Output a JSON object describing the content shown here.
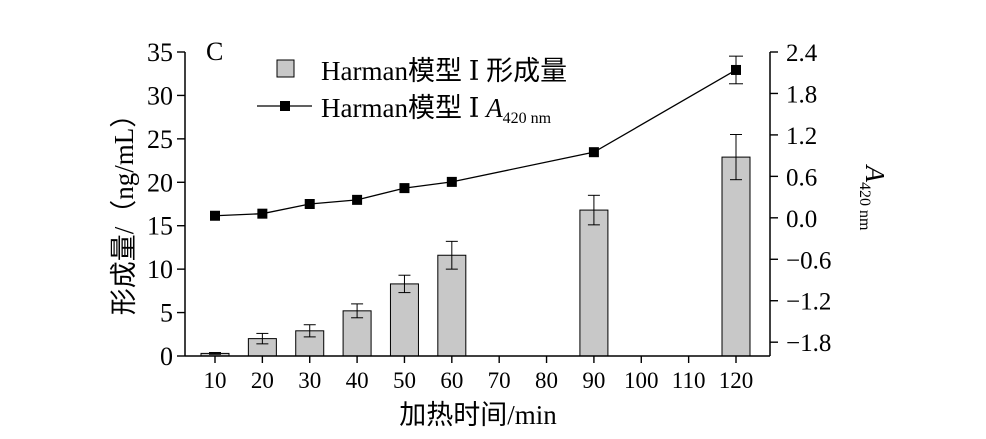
{
  "chart_data": {
    "type": "bar",
    "panel_label": "C",
    "xlabel": "加热时间/min",
    "ylabel": "形成量/（ng/mL）",
    "y2label": {
      "var": "A",
      "sub": "420 nm"
    },
    "categories": [
      "10",
      "20",
      "30",
      "40",
      "50",
      "60",
      "70",
      "80",
      "90",
      "100",
      "110",
      "120"
    ],
    "ylim": [
      0,
      35
    ],
    "yticks": [
      "0",
      "5",
      "10",
      "15",
      "20",
      "25",
      "30",
      "35"
    ],
    "y2lim": [
      -2.0,
      2.4
    ],
    "y2ticks": [
      "−1.8",
      "−1.2",
      "−0.6",
      "0.0",
      "0.6",
      "1.2",
      "1.8",
      "2.4"
    ],
    "grid": false,
    "legend_position": "top-left",
    "series": [
      {
        "name": "Harman模型 Ⅰ 形成量",
        "type": "bar",
        "axis": "left",
        "color": "#c8c8c8",
        "values": [
          0.3,
          2.0,
          2.9,
          5.2,
          8.3,
          11.6,
          null,
          null,
          16.8,
          null,
          null,
          22.9
        ],
        "errors": [
          0.1,
          0.6,
          0.7,
          0.8,
          1.0,
          1.6,
          null,
          null,
          1.7,
          null,
          null,
          2.6
        ]
      },
      {
        "name": {
          "text": "Harman模型 Ⅰ ",
          "var": "A",
          "sub": "420 nm"
        },
        "type": "line",
        "axis": "right",
        "color": "#000000",
        "marker": "square",
        "values": [
          0.03,
          0.06,
          0.2,
          0.26,
          0.43,
          0.52,
          null,
          null,
          0.95,
          null,
          null,
          2.14
        ],
        "errors": [
          null,
          null,
          null,
          null,
          null,
          null,
          null,
          null,
          null,
          null,
          null,
          0.2
        ]
      }
    ]
  }
}
